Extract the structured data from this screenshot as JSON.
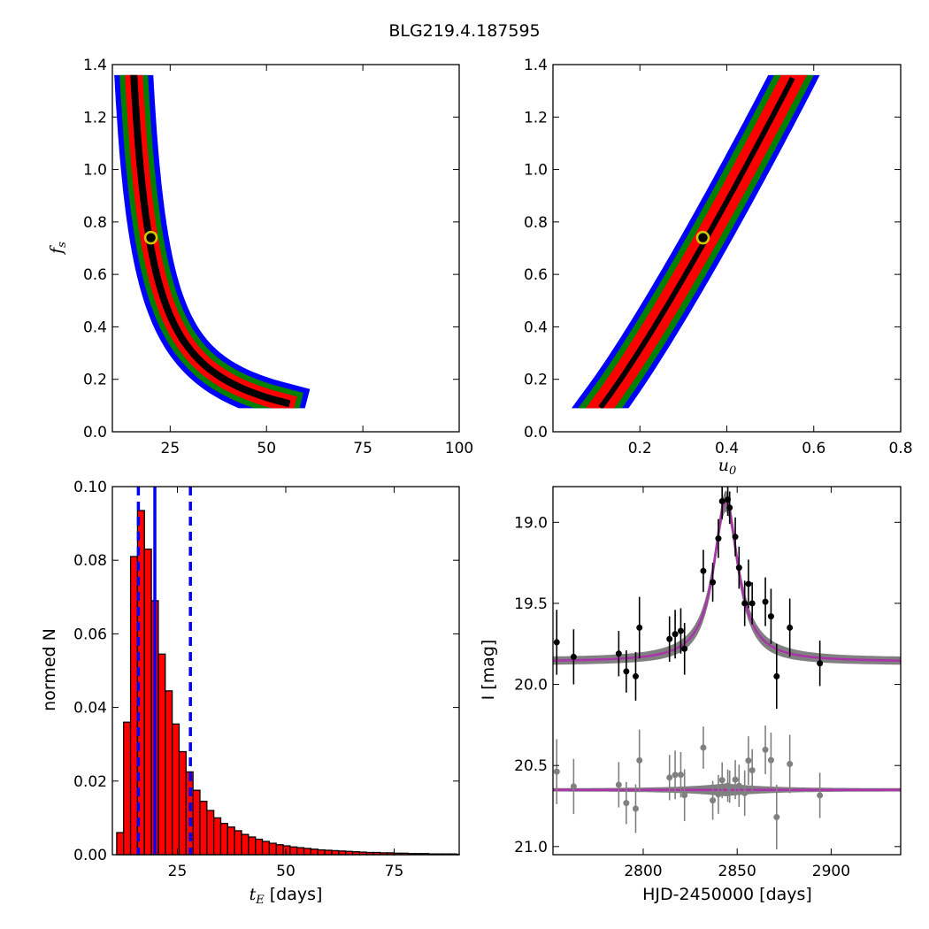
{
  "figure_title": "BLG219.4.187595",
  "colors": {
    "black": "#000000",
    "red": "#ff0000",
    "green": "#008000",
    "blue": "#0000ff",
    "marker_face": "#000000",
    "marker_edge": "#cccc00",
    "model_line": "#aa33aa",
    "model_band": "#808080",
    "residual_points": "#808080"
  },
  "chart_data": [
    {
      "panel": "top-left",
      "type": "heatmap",
      "title": "",
      "xlabel": "",
      "ylabel": "f_s",
      "xlim": [
        10,
        100
      ],
      "ylim": [
        0.0,
        1.4
      ],
      "xticks": [
        25,
        50,
        75,
        100
      ],
      "yticks": [
        0.0,
        0.2,
        0.4,
        0.6,
        0.8,
        1.0,
        1.2,
        1.4
      ],
      "levels": [
        "black",
        "red",
        "green",
        "blue"
      ],
      "best_fit": {
        "x": 20,
        "y": 0.74
      }
    },
    {
      "panel": "top-right",
      "type": "heatmap",
      "title": "",
      "xlabel": "u_0",
      "ylabel": "",
      "xlim": [
        0.0,
        0.8
      ],
      "ylim": [
        0.0,
        1.4
      ],
      "xticks": [
        0.2,
        0.4,
        0.6,
        0.8
      ],
      "yticks": [
        0.0,
        0.2,
        0.4,
        0.6,
        0.8,
        1.0,
        1.2,
        1.4
      ],
      "levels": [
        "black",
        "red",
        "green",
        "blue"
      ],
      "best_fit": {
        "x": 0.345,
        "y": 0.74
      }
    },
    {
      "panel": "bottom-left",
      "type": "bar",
      "title": "",
      "xlabel": "t_E  [days]",
      "ylabel": "normed N",
      "xlim": [
        10,
        90
      ],
      "ylim": [
        0.0,
        0.1
      ],
      "xticks": [
        25,
        50,
        75
      ],
      "yticks": [
        0.0,
        0.02,
        0.04,
        0.06,
        0.08,
        0.1
      ],
      "bin_width": 1.6,
      "bin_start": 11.0,
      "values": [
        0.006,
        0.036,
        0.081,
        0.0935,
        0.083,
        0.069,
        0.0545,
        0.0445,
        0.0355,
        0.028,
        0.0225,
        0.0175,
        0.0145,
        0.012,
        0.01,
        0.0085,
        0.0075,
        0.0065,
        0.0055,
        0.0048,
        0.0042,
        0.0036,
        0.0031,
        0.0027,
        0.0024,
        0.0021,
        0.0019,
        0.0017,
        0.0015,
        0.0013,
        0.0012,
        0.0011,
        0.001,
        0.0009,
        0.0008,
        0.0007,
        0.0006,
        0.0006,
        0.0005,
        0.0005,
        0.0004,
        0.0004,
        0.0003,
        0.0003,
        0.0003,
        0.0002,
        0.0002,
        0.0002,
        0.0002,
        0.0001
      ],
      "median_line": 19.8,
      "interval_lines": [
        16.0,
        28.0
      ]
    },
    {
      "panel": "bottom-right",
      "type": "scatter",
      "title": "",
      "xlabel": "HJD-2450000 [days]",
      "ylabel": "I [mag]",
      "xlim": [
        2752,
        2937
      ],
      "ylim": [
        21.05,
        18.78
      ],
      "xticks": [
        2800,
        2850,
        2900
      ],
      "yticks": [
        19.0,
        19.5,
        20.0,
        20.5,
        21.0
      ],
      "model": {
        "t0": 2844,
        "baseline": 19.86,
        "peak": 18.87,
        "width": 10
      },
      "residual_baseline": 20.65,
      "data_points": [
        {
          "t": 2754,
          "mag": 19.74,
          "err": 0.2
        },
        {
          "t": 2763,
          "mag": 19.83,
          "err": 0.17
        },
        {
          "t": 2787,
          "mag": 19.81,
          "err": 0.14
        },
        {
          "t": 2791,
          "mag": 19.92,
          "err": 0.13
        },
        {
          "t": 2796,
          "mag": 19.95,
          "err": 0.15
        },
        {
          "t": 2798,
          "mag": 19.65,
          "err": 0.19
        },
        {
          "t": 2814,
          "mag": 19.72,
          "err": 0.14
        },
        {
          "t": 2817,
          "mag": 19.69,
          "err": 0.15
        },
        {
          "t": 2820,
          "mag": 19.67,
          "err": 0.14
        },
        {
          "t": 2822,
          "mag": 19.78,
          "err": 0.16
        },
        {
          "t": 2832,
          "mag": 19.3,
          "err": 0.13
        },
        {
          "t": 2837,
          "mag": 19.37,
          "err": 0.12
        },
        {
          "t": 2840,
          "mag": 19.1,
          "err": 0.12
        },
        {
          "t": 2842,
          "mag": 18.87,
          "err": 0.11
        },
        {
          "t": 2845,
          "mag": 18.86,
          "err": 0.1
        },
        {
          "t": 2846,
          "mag": 18.91,
          "err": 0.1
        },
        {
          "t": 2849,
          "mag": 19.09,
          "err": 0.12
        },
        {
          "t": 2851,
          "mag": 19.28,
          "err": 0.13
        },
        {
          "t": 2854,
          "mag": 19.5,
          "err": 0.14
        },
        {
          "t": 2856,
          "mag": 19.38,
          "err": 0.15
        },
        {
          "t": 2858,
          "mag": 19.5,
          "err": 0.13
        },
        {
          "t": 2865,
          "mag": 19.49,
          "err": 0.15
        },
        {
          "t": 2868,
          "mag": 19.58,
          "err": 0.17
        },
        {
          "t": 2871,
          "mag": 19.95,
          "err": 0.2
        },
        {
          "t": 2878,
          "mag": 19.65,
          "err": 0.18
        },
        {
          "t": 2894,
          "mag": 19.87,
          "err": 0.14
        }
      ]
    }
  ]
}
